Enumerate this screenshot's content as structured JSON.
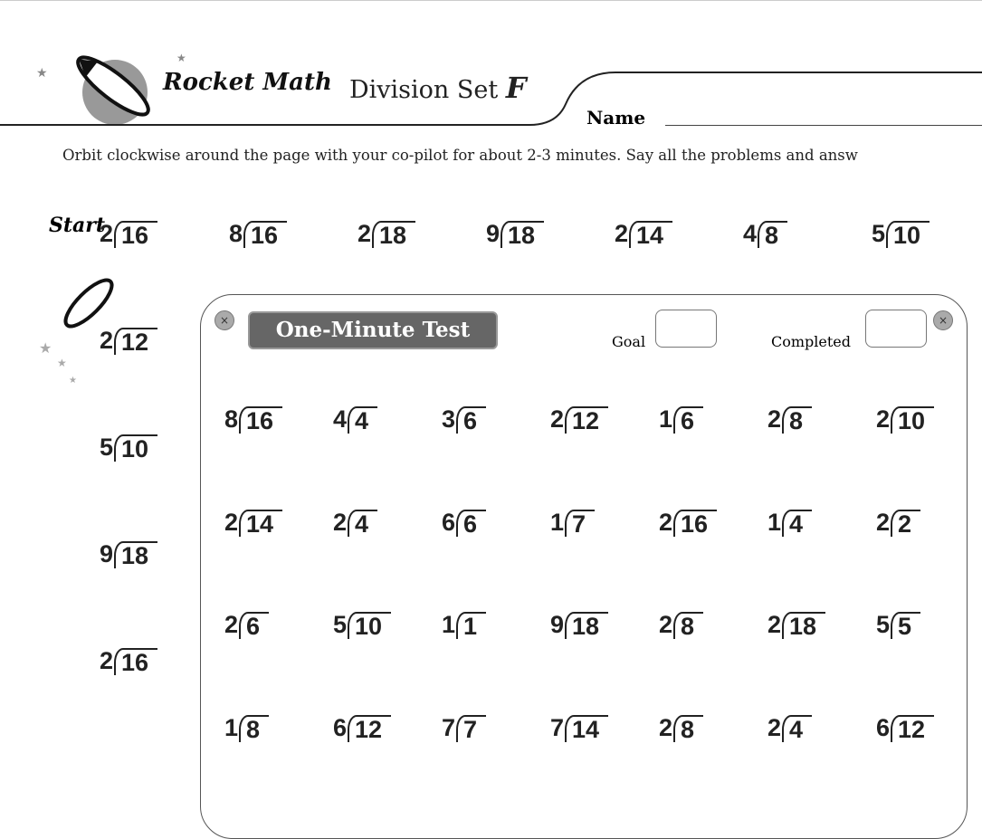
{
  "header": {
    "brand": "Rocket Math",
    "title": "Division Set",
    "set_letter": "F",
    "name_label": "Name"
  },
  "instructions": "Orbit clockwise around the page with your co-pilot for about 2-3 minutes. Say all the problems and answ",
  "start_label": "Start",
  "orbit_top": [
    [
      "2",
      "16"
    ],
    [
      "8",
      "16"
    ],
    [
      "2",
      "18"
    ],
    [
      "9",
      "18"
    ],
    [
      "2",
      "14"
    ],
    [
      "4",
      "8"
    ],
    [
      "5",
      "10"
    ]
  ],
  "orbit_left": [
    [
      "2",
      "12"
    ],
    [
      "5",
      "10"
    ],
    [
      "9",
      "18"
    ],
    [
      "2",
      "16"
    ]
  ],
  "test": {
    "title": "One-Minute Test",
    "goal_label": "Goal",
    "completed_label": "Completed",
    "rows": [
      [
        [
          "8",
          "16"
        ],
        [
          "4",
          "4"
        ],
        [
          "3",
          "6"
        ],
        [
          "2",
          "12"
        ],
        [
          "1",
          "6"
        ],
        [
          "2",
          "8"
        ],
        [
          "2",
          "10"
        ]
      ],
      [
        [
          "2",
          "14"
        ],
        [
          "2",
          "4"
        ],
        [
          "6",
          "6"
        ],
        [
          "1",
          "7"
        ],
        [
          "2",
          "16"
        ],
        [
          "1",
          "4"
        ],
        [
          "2",
          "2"
        ]
      ],
      [
        [
          "2",
          "6"
        ],
        [
          "5",
          "10"
        ],
        [
          "1",
          "1"
        ],
        [
          "9",
          "18"
        ],
        [
          "2",
          "8"
        ],
        [
          "2",
          "18"
        ],
        [
          "5",
          "5"
        ]
      ],
      [
        [
          "1",
          "8"
        ],
        [
          "6",
          "12"
        ],
        [
          "7",
          "7"
        ],
        [
          "7",
          "14"
        ],
        [
          "2",
          "8"
        ],
        [
          "2",
          "4"
        ],
        [
          "6",
          "12"
        ]
      ]
    ]
  }
}
